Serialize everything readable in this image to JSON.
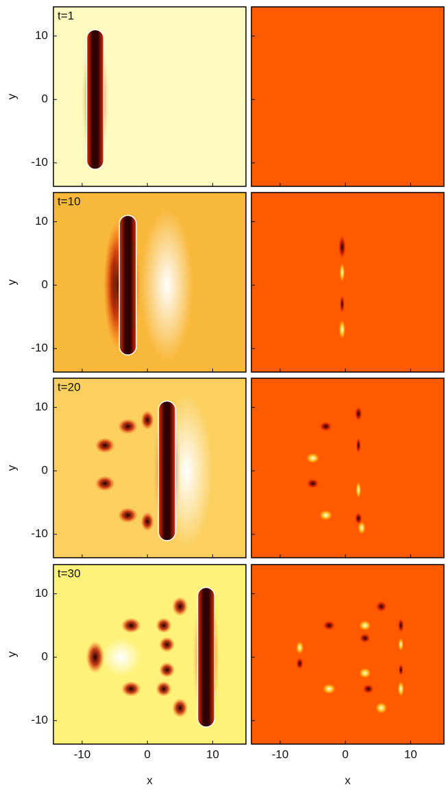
{
  "chart_data": {
    "type": "heatmap",
    "panels": [
      "t=1",
      "t=10",
      "t=20",
      "t=30"
    ],
    "xlabel": "x",
    "ylabel": "y",
    "xlim": [
      -14.4,
      15.1
    ],
    "ylim": [
      -13.7,
      14.6
    ],
    "xticks": [
      -10,
      0,
      10
    ],
    "yticks": [
      -10,
      0,
      10
    ]
  }
}
